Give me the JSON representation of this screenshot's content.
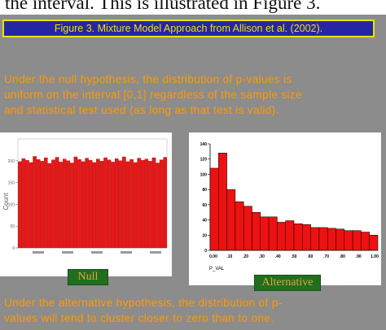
{
  "top_text": "the interval.  This is illustrated in Figure 3.",
  "figure_caption": "Figure 3. Mixture Model Approach from Allison et al. (2002).",
  "para1": {
    "line1": "Under the null hypothesis, the distribution of p-values is",
    "line2": "uniform on the interval [0,1] regardless of the sample size",
    "line3": "and statistical test used (as long as that test is valid)."
  },
  "para2": {
    "line1": "Under the alternative hypothesis, the distribution of p-",
    "line2": "values will tend to cluster closer to zero than to one."
  },
  "null_label": "Null",
  "alt_label": "Alternative",
  "colors": {
    "slide_bg": "#8c8c8c",
    "bar": "#ee1111",
    "text_orange": "#ff9a00",
    "caption_bg": "#2626a3",
    "caption_fg": "#f0e000",
    "tag_bg": "#1f6f1f"
  },
  "chart_data": [
    {
      "type": "bar",
      "title": "",
      "ylabel": "Count",
      "xlabel": "",
      "ylim": [
        0,
        250
      ],
      "yticks": [
        "0",
        "50",
        "100",
        "150",
        "200"
      ],
      "values": [
        198,
        205,
        201,
        196,
        210,
        203,
        199,
        207,
        194,
        202,
        208,
        197,
        204,
        200,
        195,
        209,
        203,
        198,
        206,
        201,
        196,
        204,
        199,
        207,
        202,
        197,
        205,
        200,
        209,
        198,
        203,
        196,
        206,
        201,
        204,
        199,
        207,
        195,
        202,
        208
      ]
    },
    {
      "type": "bar",
      "title": "",
      "xlabel": "P_VAL",
      "ylabel": "",
      "ylim": [
        0,
        140
      ],
      "yticks": [
        "0",
        "20",
        "40",
        "60",
        "80",
        "100",
        "120",
        "140"
      ],
      "xticks": [
        "0.00",
        ".10",
        ".20",
        ".30",
        ".40",
        ".50",
        ".60",
        ".70",
        ".80",
        ".90",
        "1.00"
      ],
      "values": [
        108,
        128,
        80,
        64,
        58,
        50,
        44,
        44,
        37,
        39,
        35,
        34,
        30,
        30,
        29,
        28,
        26,
        26,
        24,
        20
      ]
    }
  ]
}
